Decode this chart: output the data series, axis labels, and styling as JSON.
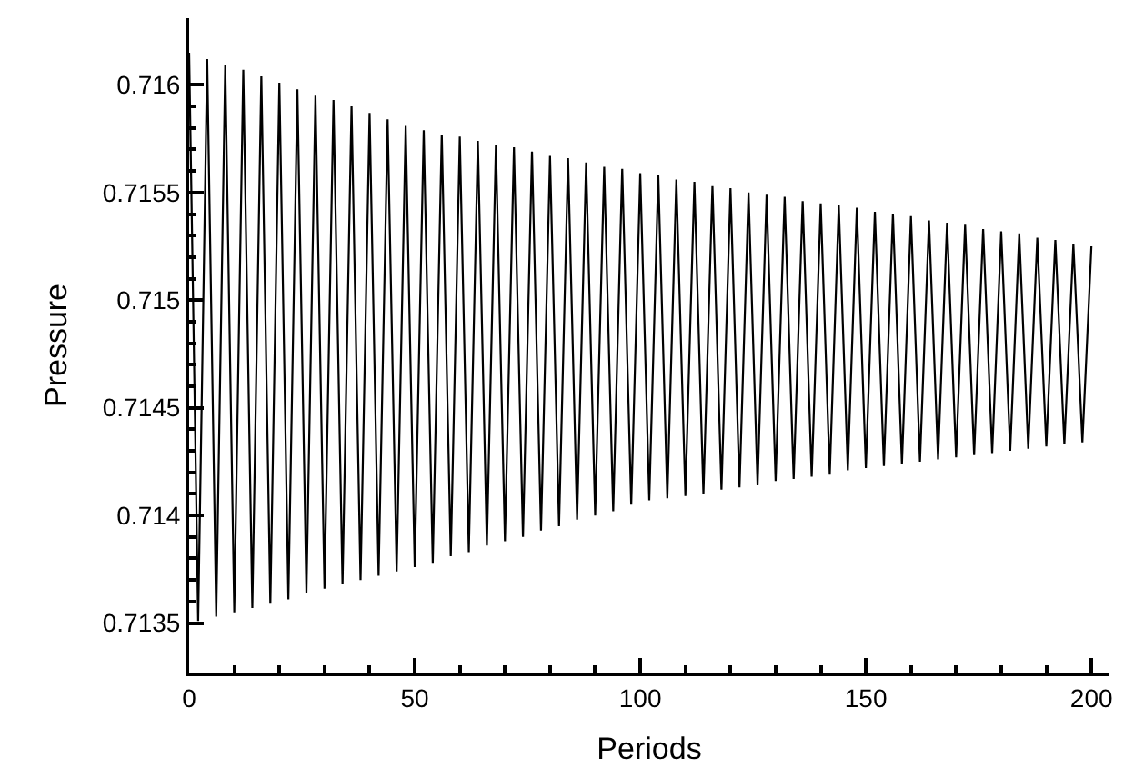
{
  "chart_data": {
    "type": "line",
    "xlabel": "Periods",
    "ylabel": "Pressure",
    "x": [
      0,
      2,
      4,
      6,
      8,
      10,
      12,
      14,
      16,
      18,
      20,
      22,
      24,
      26,
      28,
      30,
      32,
      34,
      36,
      38,
      40,
      42,
      44,
      46,
      48,
      50,
      52,
      54,
      56,
      58,
      60,
      62,
      64,
      66,
      68,
      70,
      72,
      74,
      76,
      78,
      80,
      82,
      84,
      86,
      88,
      90,
      92,
      94,
      96,
      98,
      100,
      102,
      104,
      106,
      108,
      110,
      112,
      114,
      116,
      118,
      120,
      122,
      124,
      126,
      128,
      130,
      132,
      134,
      136,
      138,
      140,
      142,
      144,
      146,
      148,
      150,
      152,
      154,
      156,
      158,
      160,
      162,
      164,
      166,
      168,
      170,
      172,
      174,
      176,
      178,
      180,
      182,
      184,
      186,
      188,
      190,
      192,
      194,
      196,
      198,
      200
    ],
    "series": [
      {
        "color": "#000000",
        "values": [
          0.71615,
          0.71351,
          0.71612,
          0.71353,
          0.71609,
          0.71355,
          0.71607,
          0.71357,
          0.71604,
          0.71359,
          0.71601,
          0.71361,
          0.71598,
          0.71364,
          0.71595,
          0.71366,
          0.71593,
          0.71368,
          0.7159,
          0.7137,
          0.71587,
          0.71372,
          0.71584,
          0.71374,
          0.71581,
          0.71376,
          0.71579,
          0.71378,
          0.71577,
          0.71381,
          0.71576,
          0.71383,
          0.71574,
          0.71386,
          0.71572,
          0.71388,
          0.71571,
          0.7139,
          0.71569,
          0.71393,
          0.71567,
          0.71395,
          0.71566,
          0.71398,
          0.71564,
          0.714,
          0.71562,
          0.71402,
          0.71561,
          0.71405,
          0.71559,
          0.71407,
          0.71558,
          0.71408,
          0.71556,
          0.71409,
          0.71555,
          0.7141,
          0.71553,
          0.71412,
          0.71552,
          0.71413,
          0.7155,
          0.71414,
          0.71549,
          0.71416,
          0.71548,
          0.71417,
          0.71546,
          0.71418,
          0.71545,
          0.71419,
          0.71544,
          0.71421,
          0.71543,
          0.71422,
          0.71541,
          0.71423,
          0.7154,
          0.71424,
          0.71539,
          0.71425,
          0.71537,
          0.71426,
          0.71536,
          0.71427,
          0.71535,
          0.71428,
          0.71533,
          0.71429,
          0.71532,
          0.7143,
          0.71531,
          0.71431,
          0.71529,
          0.71432,
          0.71528,
          0.71433,
          0.71526,
          0.71434,
          0.71525
        ]
      }
    ],
    "xlim": [
      0,
      204
    ],
    "ylim": [
      0.71327,
      0.71631
    ],
    "xticks": [
      0,
      {
        "value": 10,
        "label": null
      },
      {
        "value": 20,
        "label": null
      },
      {
        "value": 30,
        "label": null
      },
      {
        "value": 40,
        "label": null
      },
      50,
      {
        "value": 60,
        "label": null
      },
      {
        "value": 70,
        "label": null
      },
      {
        "value": 80,
        "label": null
      },
      {
        "value": 90,
        "label": null
      },
      100,
      {
        "value": 110,
        "label": null
      },
      {
        "value": 120,
        "label": null
      },
      {
        "value": 130,
        "label": null
      },
      {
        "value": 140,
        "label": null
      },
      150,
      {
        "value": 160,
        "label": null
      },
      {
        "value": 170,
        "label": null
      },
      {
        "value": 180,
        "label": null
      },
      {
        "value": 190,
        "label": null
      },
      200
    ],
    "yticks": [
      0.7135,
      {
        "value": 0.7136,
        "label": null
      },
      {
        "value": 0.7137,
        "label": null
      },
      {
        "value": 0.7138,
        "label": null
      },
      {
        "value": 0.7139,
        "label": null
      },
      0.714,
      {
        "value": 0.7141,
        "label": null
      },
      {
        "value": 0.7142,
        "label": null
      },
      {
        "value": 0.7143,
        "label": null
      },
      {
        "value": 0.7144,
        "label": null
      },
      0.7145,
      {
        "value": 0.7146,
        "label": null
      },
      {
        "value": 0.7147,
        "label": null
      },
      {
        "value": 0.7148,
        "label": null
      },
      {
        "value": 0.7149,
        "label": null
      },
      0.715,
      {
        "value": 0.7151,
        "label": null
      },
      {
        "value": 0.7152,
        "label": null
      },
      {
        "value": 0.7153,
        "label": null
      },
      {
        "value": 0.7154,
        "label": null
      },
      0.7155,
      {
        "value": 0.7156,
        "label": null
      },
      {
        "value": 0.7157,
        "label": null
      },
      {
        "value": 0.7158,
        "label": null
      },
      {
        "value": 0.7159,
        "label": null
      },
      0.716
    ],
    "grid": false,
    "legend": false,
    "marker": "none",
    "line_style": "solid"
  }
}
